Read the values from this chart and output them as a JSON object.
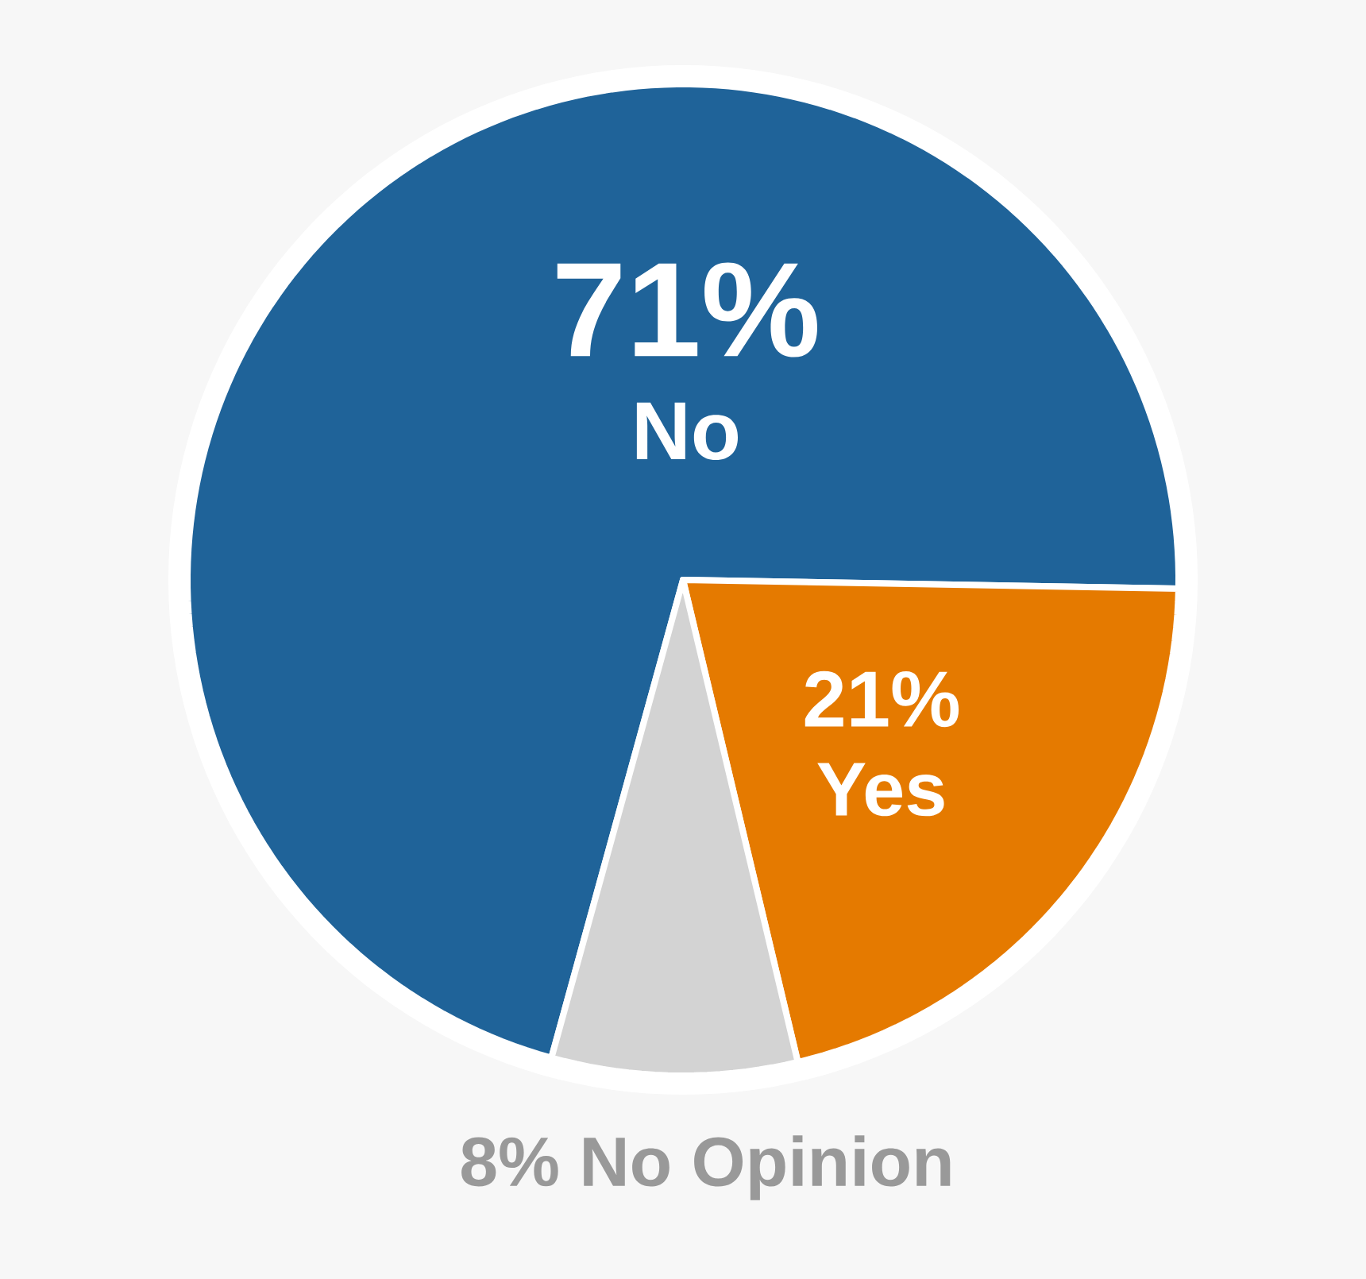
{
  "chart_data": {
    "type": "pie",
    "categories": [
      "No",
      "Yes",
      "No Opinion"
    ],
    "values": [
      71,
      21,
      8
    ],
    "colors": [
      "#1f6399",
      "#e57a00",
      "#d3d3d3"
    ],
    "value_labels": [
      "71%",
      "21%",
      "8%"
    ]
  }
}
